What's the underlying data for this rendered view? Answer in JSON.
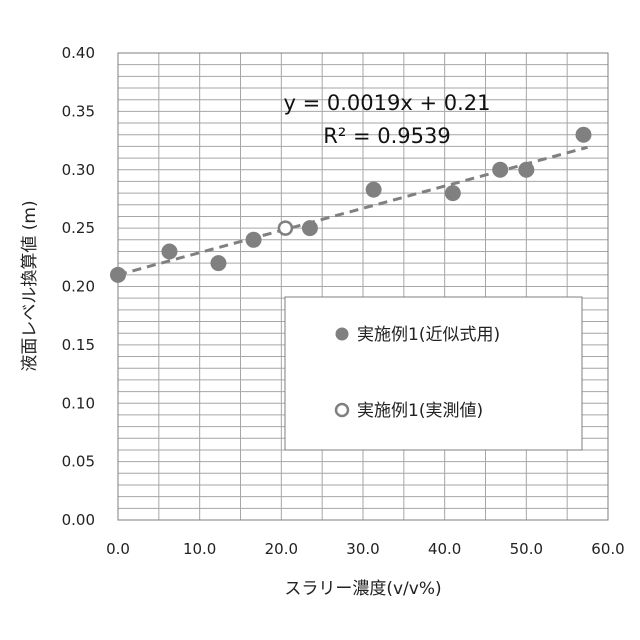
{
  "chart_data": {
    "type": "scatter",
    "xlabel": "スラリー濃度(v/v%)",
    "ylabel": "液面レベル換算値 (m)",
    "xlim": [
      0,
      60
    ],
    "ylim": [
      0,
      0.4
    ],
    "x_ticks": [
      "0.0",
      "10.0",
      "20.0",
      "30.0",
      "40.0",
      "50.0",
      "60.0"
    ],
    "y_ticks": [
      "0.00",
      "0.05",
      "0.10",
      "0.15",
      "0.20",
      "0.25",
      "0.30",
      "0.35",
      "0.40"
    ],
    "grid": true,
    "legend_position": "bottom-right",
    "series": [
      {
        "name": "実施例1(近似式用)",
        "marker": "filled-circle",
        "color": "#808080",
        "points": [
          {
            "x": 0,
            "y": 0.21
          },
          {
            "x": 6.3,
            "y": 0.23
          },
          {
            "x": 12.3,
            "y": 0.22
          },
          {
            "x": 16.6,
            "y": 0.24
          },
          {
            "x": 23.5,
            "y": 0.25
          },
          {
            "x": 31.3,
            "y": 0.283
          },
          {
            "x": 41.0,
            "y": 0.28
          },
          {
            "x": 46.8,
            "y": 0.3
          },
          {
            "x": 50.0,
            "y": 0.3
          },
          {
            "x": 57.0,
            "y": 0.33
          }
        ]
      },
      {
        "name": "実施例1(実測値)",
        "marker": "open-circle",
        "color": "#808080",
        "points": [
          {
            "x": 20.5,
            "y": 0.25
          }
        ]
      }
    ],
    "trendline": {
      "slope": 0.0019,
      "intercept": 0.21,
      "x_range": [
        0,
        57.5
      ],
      "style": "dashed",
      "color": "#808080",
      "equation": "y = 0.0019x + 0.21",
      "r_squared_label": "R² = 0.9539"
    }
  }
}
